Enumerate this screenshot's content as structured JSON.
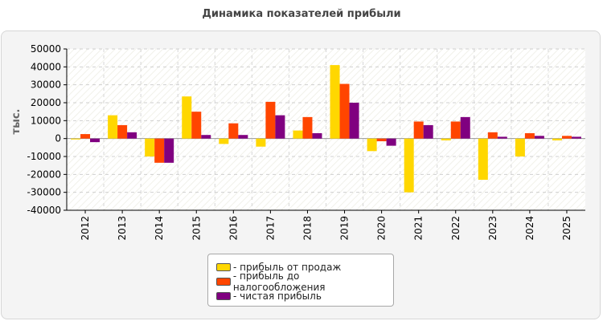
{
  "chart_data": {
    "type": "bar",
    "title": "Динамика показателей прибыли",
    "ylabel": "тыс.",
    "xlabel": "",
    "ylim": [
      -40000,
      50000
    ],
    "yticks": [
      -40000,
      -30000,
      -20000,
      -10000,
      0,
      10000,
      20000,
      30000,
      40000,
      50000
    ],
    "grid": true,
    "legend_position": "bottom-center",
    "categories": [
      "2012",
      "2013",
      "2014",
      "2015",
      "2016",
      "2017",
      "2018",
      "2019",
      "2020",
      "2021",
      "2022",
      "2023",
      "2024",
      "2025"
    ],
    "series": [
      {
        "name": "- прибыль от продаж",
        "color": "#ffd700",
        "values": [
          -500,
          13000,
          -10000,
          23500,
          -3000,
          -4500,
          4500,
          41000,
          -7000,
          -30000,
          -1000,
          -23000,
          -10000,
          -1000
        ]
      },
      {
        "name": "- прибыль до налогообложения",
        "color": "#ff4500",
        "values": [
          2500,
          7500,
          -13500,
          15000,
          8500,
          20500,
          12000,
          30500,
          -1500,
          9500,
          9500,
          3500,
          3000,
          1500
        ]
      },
      {
        "name": "- чистая прибыль",
        "color": "#800080",
        "values": [
          -2000,
          3500,
          -13500,
          2000,
          2000,
          13000,
          3000,
          20000,
          -4000,
          7500,
          12000,
          1000,
          1500,
          1000
        ]
      }
    ]
  }
}
